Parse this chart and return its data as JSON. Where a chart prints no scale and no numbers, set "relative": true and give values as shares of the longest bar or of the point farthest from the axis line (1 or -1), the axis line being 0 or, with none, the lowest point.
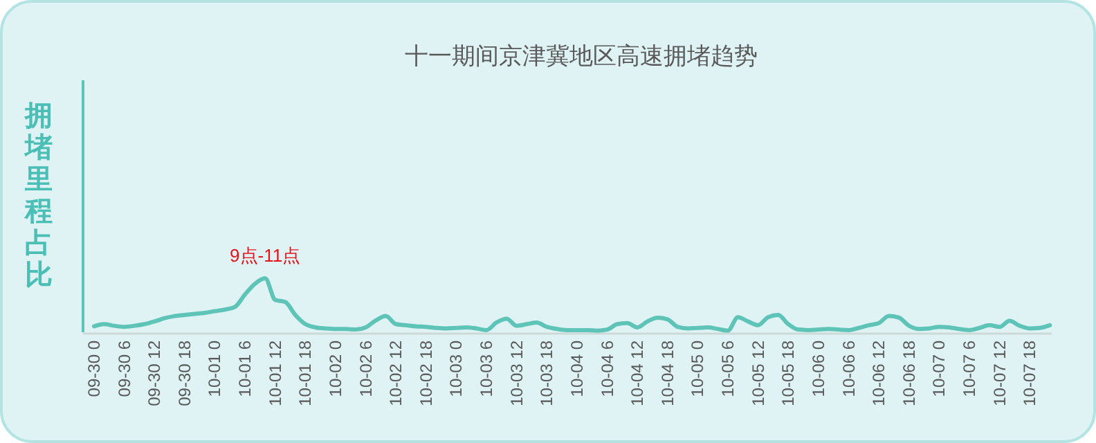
{
  "chart_data": {
    "type": "line",
    "title": "十一期间京津冀地区高速拥堵趋势",
    "ylabel": "拥堵里程占比",
    "relative": true,
    "grid": false,
    "marker": "none",
    "line_style": "solid",
    "annotations": [
      "9点-11点"
    ],
    "categories": [
      "09-30 0",
      null,
      null,
      "09-30 6",
      null,
      null,
      "09-30 12",
      null,
      null,
      "09-30 18",
      null,
      null,
      "10-01 0",
      null,
      null,
      "10-01 6",
      null,
      null,
      "10-01 12",
      null,
      null,
      "10-01 18",
      null,
      null,
      "10-02 0",
      null,
      null,
      "10-02 6",
      null,
      null,
      "10-02 12",
      null,
      null,
      "10-02 18",
      null,
      null,
      "10-03 0",
      null,
      null,
      "10-03 6",
      null,
      null,
      "10-03 12",
      null,
      null,
      "10-03 18",
      null,
      null,
      "10-04 0",
      null,
      null,
      "10-04 6",
      null,
      null,
      "10-04 12",
      null,
      null,
      "10-04 18",
      null,
      null,
      "10-05 0",
      null,
      null,
      "10-05 6",
      null,
      null,
      "10-05 12",
      null,
      null,
      "10-05 18",
      null,
      null,
      "10-06 0",
      null,
      null,
      "10-06 6",
      null,
      null,
      "10-06 12",
      null,
      null,
      "10-06 18",
      null,
      null,
      "10-07 0",
      null,
      null,
      "10-07 6",
      null,
      null,
      "10-07 12",
      null,
      null,
      "10-07 18",
      null,
      null
    ],
    "series": [
      {
        "color": "#5ec4b8",
        "values": [
          0.11,
          0.15,
          0.12,
          0.1,
          0.12,
          0.15,
          0.2,
          0.26,
          0.3,
          0.32,
          0.34,
          0.36,
          0.39,
          0.42,
          0.47,
          0.7,
          0.9,
          1,
          0.6,
          0.56,
          0.32,
          0.15,
          0.09,
          0.07,
          0.06,
          0.06,
          0.05,
          0.09,
          0.22,
          0.3,
          0.15,
          0.13,
          0.11,
          0.1,
          0.08,
          0.07,
          0.08,
          0.09,
          0.07,
          0.04,
          0.18,
          0.25,
          0.12,
          0.15,
          0.18,
          0.1,
          0.06,
          0.04,
          0.04,
          0.04,
          0.03,
          0.05,
          0.15,
          0.17,
          0.09,
          0.2,
          0.27,
          0.24,
          0.1,
          0.07,
          0.08,
          0.09,
          0.06,
          0.03,
          0.28,
          0.2,
          0.13,
          0.28,
          0.32,
          0.15,
          0.05,
          0.04,
          0.05,
          0.06,
          0.05,
          0.04,
          0.08,
          0.13,
          0.17,
          0.3,
          0.27,
          0.12,
          0.06,
          0.07,
          0.1,
          0.09,
          0.06,
          0.04,
          0.08,
          0.13,
          0.1,
          0.21,
          0.12,
          0.07,
          0.08,
          0.13
        ]
      }
    ]
  }
}
